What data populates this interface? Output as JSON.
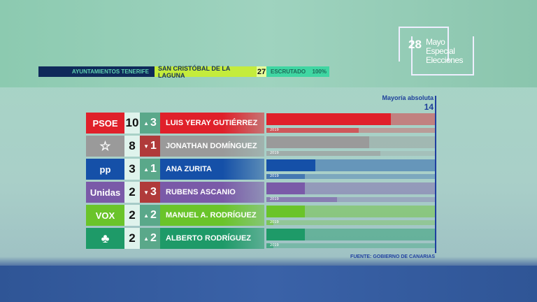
{
  "logo": {
    "number": "28",
    "line1": "Mayo",
    "line2": "Especial",
    "line3": "Elecciones"
  },
  "header": {
    "region": "AYUNTAMIENTOS TENERIFE",
    "municipality": "SAN CRISTÓBAL DE LA LAGUNA",
    "total_seats": "27",
    "scrutiny_label": "ESCRUTADO",
    "scrutiny_value": "100%"
  },
  "majority": {
    "label": "Mayoría absoluta",
    "seats": "14"
  },
  "previous_label": "2019",
  "source": "FUENTE: GOBIERNO DE CANARIAS",
  "parties": [
    {
      "party": "PSOE",
      "seats": 10,
      "change": "3",
      "direction": "up",
      "candidate": "LUIS YERAY GUTIÉRREZ",
      "seats_2019": 7,
      "color": "#e0202a"
    },
    {
      "party": "",
      "logo_icon": "coalicion-canaria-star-icon",
      "seats": 8,
      "change": "1",
      "direction": "down",
      "candidate": "JONATHAN DOMÍNGUEZ",
      "seats_2019": 9,
      "color": "#9a9a9a"
    },
    {
      "party": "pp",
      "seats": 3,
      "change": "1",
      "direction": "up",
      "candidate": "ANA ZURITA",
      "seats_2019": 2,
      "color": "#1550a8"
    },
    {
      "party": "Unidas",
      "seats": 2,
      "change": "3",
      "direction": "down",
      "candidate": "RUBENS ASCANIO",
      "seats_2019": 5,
      "color": "#7a5aa8"
    },
    {
      "party": "VOX",
      "seats": 2,
      "change": "2",
      "direction": "up",
      "candidate": "MANUEL A. RODRÍGUEZ",
      "seats_2019": 0,
      "color": "#6ac42a"
    },
    {
      "party": "",
      "logo_icon": "drago-tree-icon",
      "seats": 2,
      "change": "2",
      "direction": "up",
      "candidate": "ALBERTO RODRÍGUEZ",
      "seats_2019": 0,
      "color": "#1e9a68"
    }
  ],
  "colors": {
    "up": "#5aa88a",
    "down": "#b03a3a",
    "majority": "#1e3fa0"
  }
}
